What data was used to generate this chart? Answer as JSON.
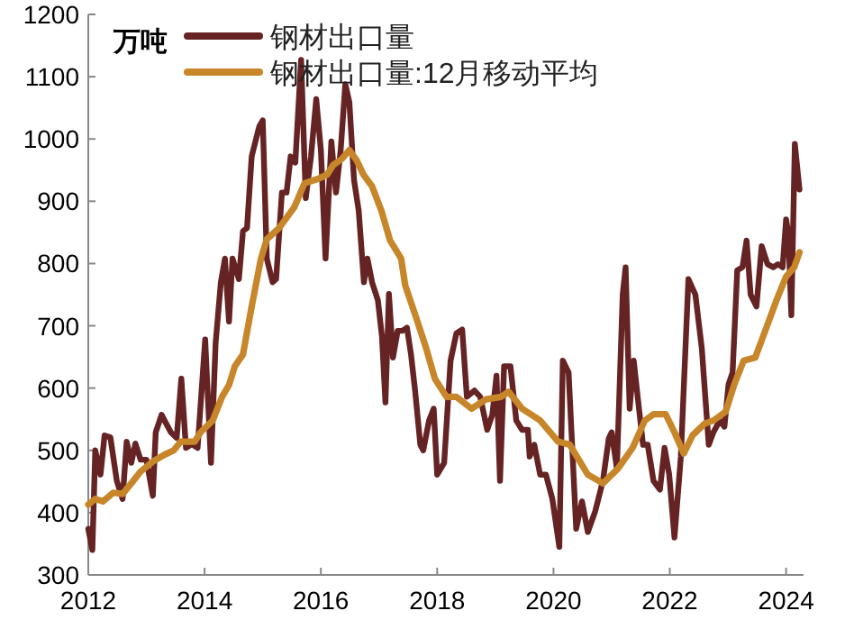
{
  "chart_data": {
    "type": "line",
    "ylabel": "万吨",
    "xlim": [
      2012,
      2024.3
    ],
    "ylim": [
      300,
      1200
    ],
    "xticks": [
      2012,
      2014,
      2016,
      2018,
      2020,
      2022,
      {
        "value": 2024,
        "label": "2024"
      }
    ],
    "yticks": [
      300,
      400,
      500,
      600,
      700,
      800,
      900,
      1000,
      1100,
      1200
    ],
    "grid": false,
    "legend": "top",
    "marker": "none",
    "line_style": "solid",
    "series": [
      {
        "name": "钢材出口量",
        "color": "#662323",
        "x": [
          2012.0,
          2012.07,
          2012.12,
          2012.21,
          2012.28,
          2012.38,
          2012.49,
          2012.59,
          2012.66,
          2012.74,
          2012.81,
          2012.9,
          2013.0,
          2013.11,
          2013.16,
          2013.26,
          2013.42,
          2013.52,
          2013.6,
          2013.68,
          2013.78,
          2013.88,
          2014.01,
          2014.11,
          2014.19,
          2014.28,
          2014.35,
          2014.42,
          2014.48,
          2014.59,
          2014.66,
          2014.73,
          2014.81,
          2014.94,
          2015.0,
          2015.07,
          2015.17,
          2015.23,
          2015.33,
          2015.41,
          2015.48,
          2015.56,
          2015.66,
          2015.74,
          2015.83,
          2015.92,
          2016.0,
          2016.08,
          2016.18,
          2016.26,
          2016.34,
          2016.42,
          2016.49,
          2016.57,
          2016.65,
          2016.74,
          2016.8,
          2016.88,
          2016.98,
          2017.05,
          2017.11,
          2017.17,
          2017.24,
          2017.32,
          2017.4,
          2017.48,
          2017.55,
          2017.62,
          2017.71,
          2017.76,
          2017.86,
          2017.94,
          2018.0,
          2018.12,
          2018.23,
          2018.33,
          2018.43,
          2018.51,
          2018.64,
          2018.74,
          2018.86,
          2018.95,
          2019.02,
          2019.08,
          2019.15,
          2019.26,
          2019.36,
          2019.46,
          2019.56,
          2019.59,
          2019.67,
          2019.77,
          2019.87,
          2019.98,
          2020.1,
          2020.16,
          2020.26,
          2020.39,
          2020.49,
          2020.59,
          2020.72,
          2020.85,
          2020.95,
          2021.0,
          2021.09,
          2021.19,
          2021.24,
          2021.31,
          2021.38,
          2021.47,
          2021.54,
          2021.62,
          2021.72,
          2021.83,
          2021.91,
          2021.99,
          2022.08,
          2022.19,
          2022.32,
          2022.44,
          2022.55,
          2022.67,
          2022.75,
          2022.86,
          2022.94,
          2023.01,
          2023.08,
          2023.16,
          2023.25,
          2023.32,
          2023.39,
          2023.49,
          2023.58,
          2023.68,
          2023.78,
          2023.86,
          2023.94,
          2024.0,
          2024.04,
          2024.09,
          2024.15,
          2024.23
        ],
        "values": [
          374,
          340,
          500,
          461,
          524,
          521,
          451,
          422,
          514,
          480,
          511,
          485,
          485,
          427,
          529,
          557,
          529,
          520,
          615,
          504,
          510,
          504,
          678,
          480,
          673,
          770,
          808,
          707,
          808,
          775,
          852,
          857,
          972,
          1020,
          1030,
          808,
          770,
          775,
          914,
          914,
          972,
          962,
          1127,
          905,
          972,
          1064,
          982,
          808,
          996,
          914,
          982,
          1088,
          1059,
          934,
          885,
          770,
          808,
          770,
          741,
          683,
          577,
          751,
          649,
          692,
          692,
          697,
          654,
          596,
          509,
          500,
          548,
          567,
          461,
          480,
          644,
          688,
          694,
          586,
          596,
          586,
          533,
          558,
          620,
          451,
          635,
          635,
          548,
          533,
          533,
          490,
          509,
          461,
          461,
          422,
          345,
          644,
          625,
          374,
          418,
          369,
          403,
          451,
          519,
          529,
          471,
          750,
          794,
          567,
          644,
          567,
          509,
          509,
          451,
          437,
          504,
          461,
          360,
          490,
          775,
          750,
          664,
          509,
          529,
          548,
          538,
          606,
          625,
          789,
          794,
          837,
          750,
          731,
          828,
          799,
          794,
          799,
          794,
          871,
          847,
          717,
          992,
          919
        ]
      },
      {
        "name": "钢材出口量:12月移动平均",
        "color": "#c8862a",
        "x": [
          2012.0,
          2012.12,
          2012.25,
          2012.43,
          2012.59,
          2012.74,
          2012.9,
          2013.11,
          2013.31,
          2013.47,
          2013.59,
          2013.83,
          2013.93,
          2014.14,
          2014.3,
          2014.42,
          2014.52,
          2014.66,
          2014.81,
          2014.97,
          2015.07,
          2015.28,
          2015.54,
          2015.72,
          2015.95,
          2016.11,
          2016.21,
          2016.36,
          2016.49,
          2016.62,
          2016.73,
          2016.88,
          2017.04,
          2017.19,
          2017.38,
          2017.45,
          2017.66,
          2017.81,
          2017.96,
          2018.16,
          2018.33,
          2018.59,
          2018.84,
          2019.1,
          2019.23,
          2019.46,
          2019.77,
          2020.08,
          2020.28,
          2020.59,
          2020.85,
          2021.11,
          2021.36,
          2021.57,
          2021.72,
          2021.93,
          2022.08,
          2022.24,
          2022.39,
          2022.6,
          2022.75,
          2022.96,
          2023.11,
          2023.27,
          2023.47,
          2023.68,
          2023.83,
          2024.0,
          2024.14,
          2024.23
        ],
        "values": [
          413,
          422,
          418,
          432,
          430,
          447,
          466,
          482,
          493,
          500,
          514,
          514,
          529,
          548,
          586,
          605,
          635,
          654,
          731,
          808,
          839,
          857,
          890,
          929,
          936,
          943,
          958,
          968,
          982,
          965,
          943,
          924,
          885,
          837,
          808,
          765,
          707,
          664,
          615,
          586,
          586,
          567,
          582,
          586,
          594,
          567,
          548,
          514,
          509,
          461,
          447,
          471,
          504,
          548,
          558,
          558,
          529,
          495,
          524,
          543,
          548,
          562,
          606,
          644,
          649,
          702,
          740,
          779,
          794,
          818
        ]
      }
    ]
  }
}
